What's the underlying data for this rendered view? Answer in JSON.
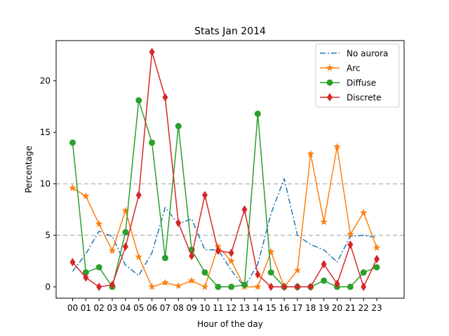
{
  "chart_data": {
    "type": "line",
    "title": "Stats Jan 2014",
    "xlabel": "Hour of the day",
    "ylabel": "Percentage",
    "categories": [
      "00",
      "01",
      "02",
      "03",
      "04",
      "05",
      "06",
      "07",
      "08",
      "09",
      "10",
      "11",
      "12",
      "13",
      "14",
      "15",
      "16",
      "17",
      "18",
      "19",
      "20",
      "21",
      "22",
      "23"
    ],
    "ylim": [
      -1.1,
      23.9
    ],
    "yticks": [
      0,
      5,
      10,
      15,
      20
    ],
    "hlines": [
      5,
      10
    ],
    "legend_position": "top-right",
    "series": [
      {
        "name": "No aurora",
        "color": "#1f77b4",
        "linestyle": "dashdot",
        "marker": "none",
        "values": [
          1.5,
          3.2,
          5.4,
          4.9,
          2.1,
          1.1,
          3.3,
          7.7,
          6.1,
          6.6,
          3.6,
          3.6,
          1.6,
          0.0,
          2.2,
          7.1,
          10.5,
          5.0,
          4.1,
          3.6,
          2.4,
          4.9,
          5.0,
          4.8
        ]
      },
      {
        "name": "Arc",
        "color": "#ff7f0e",
        "linestyle": "solid",
        "marker": "star",
        "values": [
          9.6,
          8.8,
          6.1,
          3.5,
          7.4,
          2.9,
          0.0,
          0.4,
          0.1,
          0.6,
          0.0,
          3.9,
          2.5,
          0.0,
          0.0,
          3.4,
          0.0,
          1.6,
          12.9,
          6.3,
          13.6,
          5.1,
          7.2,
          3.8
        ]
      },
      {
        "name": "Diffuse",
        "color": "#2ca02c",
        "linestyle": "solid",
        "marker": "circle",
        "values": [
          14.0,
          1.4,
          1.9,
          0.0,
          5.3,
          18.1,
          14.0,
          2.8,
          15.6,
          3.6,
          1.4,
          0.0,
          0.0,
          0.2,
          16.8,
          1.4,
          0.0,
          0.0,
          0.0,
          0.6,
          0.0,
          0.0,
          1.4,
          1.9
        ]
      },
      {
        "name": "Discrete",
        "color": "#d62728",
        "linestyle": "solid",
        "marker": "diamond",
        "values": [
          2.4,
          0.9,
          0.0,
          0.2,
          3.9,
          8.9,
          22.8,
          18.4,
          6.2,
          3.0,
          8.9,
          3.5,
          3.3,
          7.5,
          1.2,
          0.0,
          0.0,
          0.0,
          0.0,
          2.2,
          0.3,
          4.1,
          0.0,
          2.7
        ]
      }
    ]
  }
}
